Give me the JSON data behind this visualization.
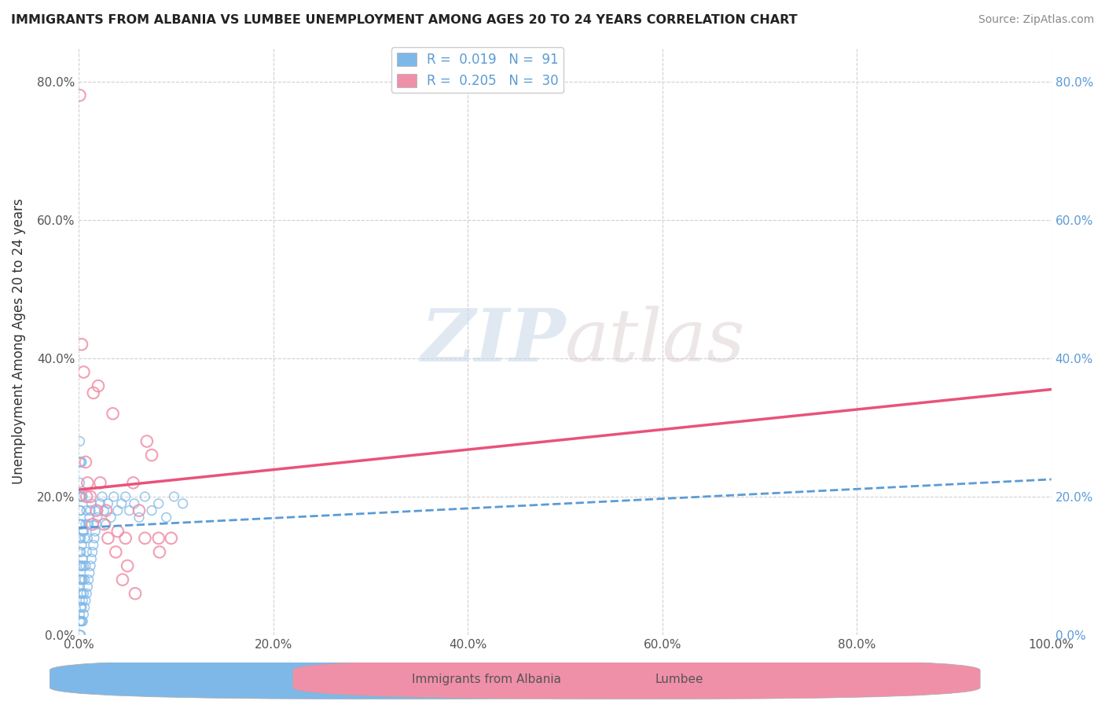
{
  "title": "IMMIGRANTS FROM ALBANIA VS LUMBEE UNEMPLOYMENT AMONG AGES 20 TO 24 YEARS CORRELATION CHART",
  "source": "Source: ZipAtlas.com",
  "ylabel": "Unemployment Among Ages 20 to 24 years",
  "xlim": [
    0.0,
    1.0
  ],
  "ylim": [
    0.0,
    0.85
  ],
  "xticks": [
    0.0,
    0.2,
    0.4,
    0.6,
    0.8,
    1.0
  ],
  "yticks": [
    0.0,
    0.2,
    0.4,
    0.6,
    0.8
  ],
  "xticklabels": [
    "0.0%",
    "20.0%",
    "40.0%",
    "60.0%",
    "80.0%",
    "100.0%"
  ],
  "yticklabels": [
    "0.0%",
    "20.0%",
    "40.0%",
    "60.0%",
    "80.0%"
  ],
  "right_yticklabels": [
    "0.0%",
    "20.0%",
    "40.0%",
    "60.0%",
    "80.0%"
  ],
  "right_yticks": [
    0.0,
    0.2,
    0.4,
    0.6,
    0.8
  ],
  "legend_entry_1": "R =  0.019   N =  91",
  "legend_entry_2": "R =  0.205   N =  30",
  "albania_scatter_x": [
    0.001,
    0.001,
    0.001,
    0.001,
    0.001,
    0.001,
    0.001,
    0.001,
    0.001,
    0.001,
    0.001,
    0.001,
    0.001,
    0.001,
    0.001,
    0.002,
    0.002,
    0.002,
    0.002,
    0.002,
    0.002,
    0.002,
    0.002,
    0.002,
    0.002,
    0.002,
    0.002,
    0.003,
    0.003,
    0.003,
    0.003,
    0.003,
    0.003,
    0.003,
    0.003,
    0.003,
    0.004,
    0.004,
    0.004,
    0.004,
    0.004,
    0.004,
    0.005,
    0.005,
    0.005,
    0.005,
    0.006,
    0.006,
    0.006,
    0.007,
    0.007,
    0.007,
    0.008,
    0.008,
    0.008,
    0.009,
    0.009,
    0.01,
    0.01,
    0.011,
    0.011,
    0.012,
    0.012,
    0.013,
    0.013,
    0.014,
    0.015,
    0.016,
    0.017,
    0.018,
    0.019,
    0.02,
    0.022,
    0.024,
    0.026,
    0.028,
    0.03,
    0.033,
    0.036,
    0.04,
    0.044,
    0.048,
    0.052,
    0.057,
    0.062,
    0.068,
    0.075,
    0.082,
    0.09,
    0.098,
    0.107
  ],
  "albania_scatter_y": [
    0.0,
    0.02,
    0.03,
    0.05,
    0.07,
    0.08,
    0.1,
    0.12,
    0.14,
    0.16,
    0.18,
    0.2,
    0.22,
    0.25,
    0.28,
    0.0,
    0.02,
    0.04,
    0.06,
    0.08,
    0.1,
    0.12,
    0.14,
    0.16,
    0.18,
    0.2,
    0.25,
    0.02,
    0.04,
    0.06,
    0.08,
    0.1,
    0.13,
    0.16,
    0.2,
    0.25,
    0.02,
    0.05,
    0.08,
    0.11,
    0.15,
    0.2,
    0.03,
    0.06,
    0.1,
    0.15,
    0.04,
    0.08,
    0.14,
    0.05,
    0.1,
    0.16,
    0.06,
    0.12,
    0.18,
    0.07,
    0.14,
    0.08,
    0.16,
    0.09,
    0.17,
    0.1,
    0.18,
    0.11,
    0.19,
    0.12,
    0.13,
    0.14,
    0.15,
    0.16,
    0.17,
    0.18,
    0.19,
    0.2,
    0.18,
    0.16,
    0.19,
    0.17,
    0.2,
    0.18,
    0.19,
    0.2,
    0.18,
    0.19,
    0.17,
    0.2,
    0.18,
    0.19,
    0.17,
    0.2,
    0.19
  ],
  "lumbee_scatter_x": [
    0.001,
    0.003,
    0.005,
    0.007,
    0.009,
    0.012,
    0.015,
    0.018,
    0.022,
    0.026,
    0.03,
    0.035,
    0.04,
    0.045,
    0.05,
    0.056,
    0.062,
    0.068,
    0.075,
    0.082,
    0.008,
    0.014,
    0.02,
    0.028,
    0.038,
    0.048,
    0.058,
    0.07,
    0.083,
    0.095
  ],
  "lumbee_scatter_y": [
    0.78,
    0.42,
    0.38,
    0.25,
    0.22,
    0.2,
    0.35,
    0.18,
    0.22,
    0.16,
    0.14,
    0.32,
    0.15,
    0.08,
    0.1,
    0.22,
    0.18,
    0.14,
    0.26,
    0.14,
    0.2,
    0.16,
    0.36,
    0.18,
    0.12,
    0.14,
    0.06,
    0.28,
    0.12,
    0.14
  ],
  "albania_trend_x": [
    0.0,
    1.0
  ],
  "albania_trend_y": [
    0.155,
    0.225
  ],
  "lumbee_trend_x": [
    0.0,
    1.0
  ],
  "lumbee_trend_y": [
    0.21,
    0.355
  ],
  "albania_color": "#7eb8e8",
  "lumbee_color": "#f090a8",
  "albania_trend_color": "#5b9bd5",
  "lumbee_trend_color": "#e8537a",
  "watermark_zip": "ZIP",
  "watermark_atlas": "atlas",
  "background_color": "#ffffff",
  "grid_color": "#d0d0d0"
}
